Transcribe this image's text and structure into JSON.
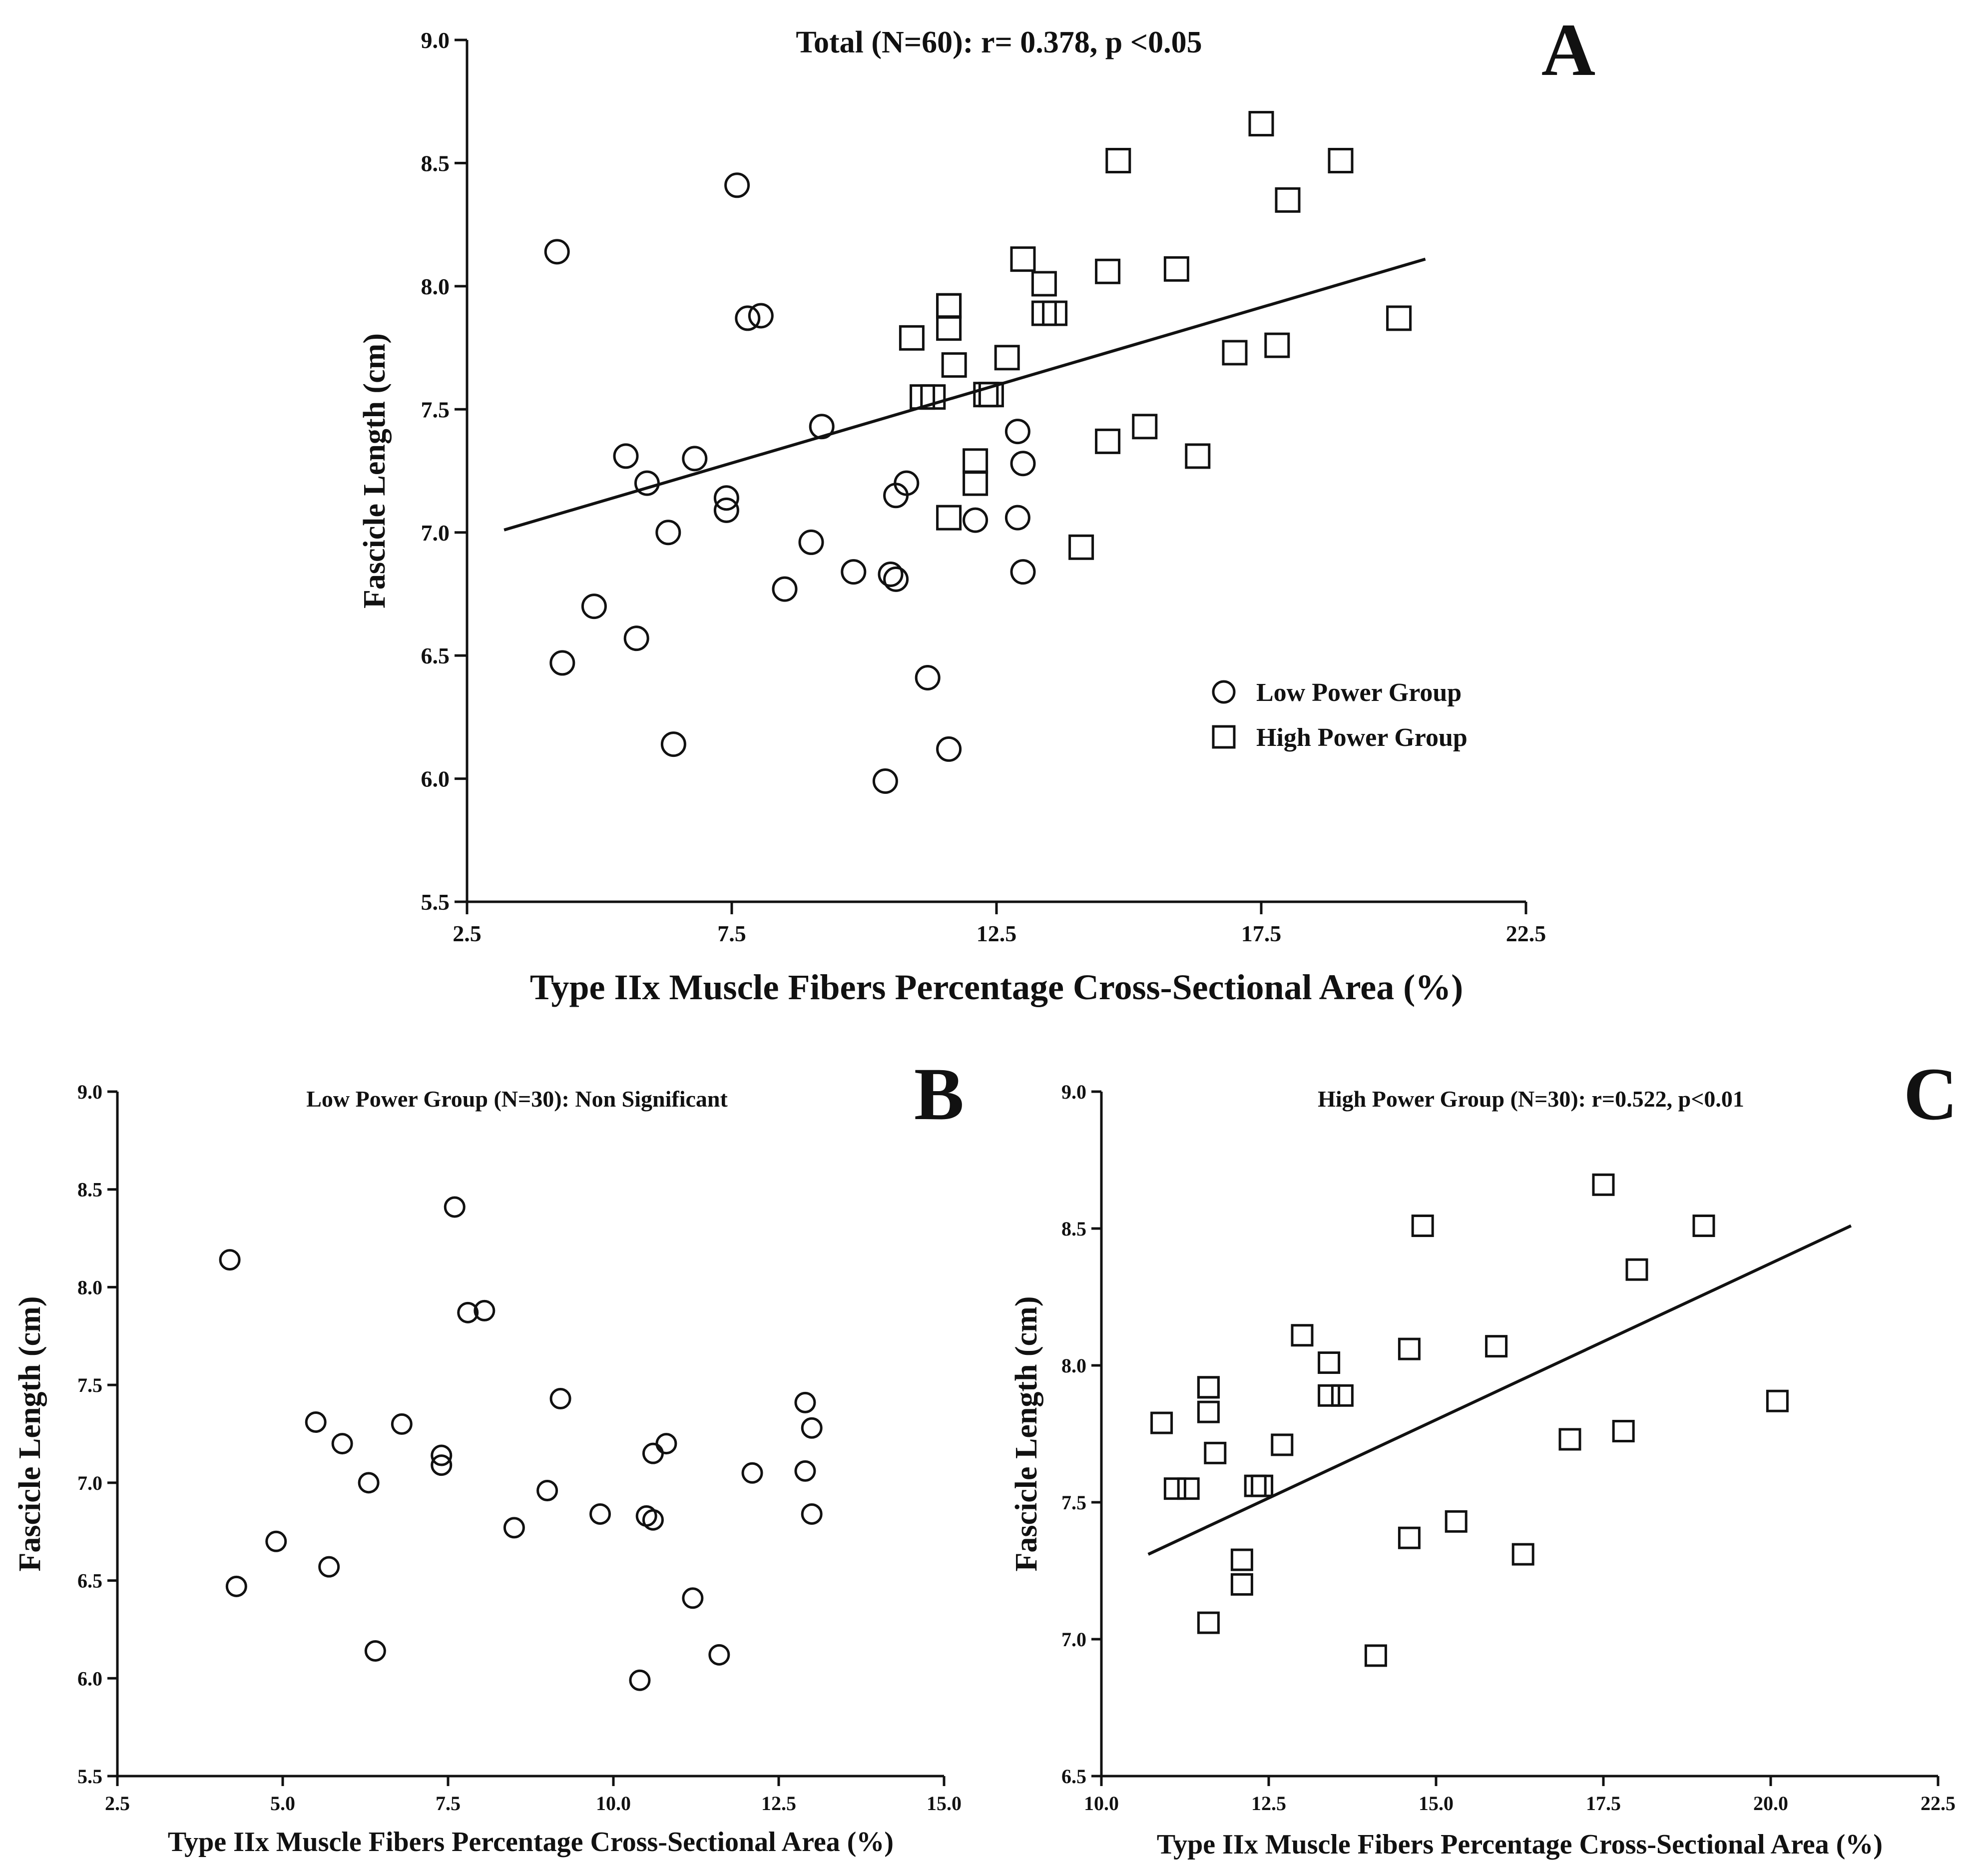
{
  "chart_data": [
    {
      "id": "A",
      "type": "scatter",
      "panel_letter": "A",
      "title": "Total (N=60): r= 0.378, p <0.05",
      "xlabel": "Type IIx Muscle Fibers Percentage Cross-Sectional Area (%)",
      "ylabel": "Fascicle Length (cm)",
      "xlim": [
        2.5,
        22.5
      ],
      "ylim": [
        5.5,
        9.0
      ],
      "xticks": [
        "2.5",
        "7.5",
        "12.5",
        "17.5",
        "22.5"
      ],
      "yticks": [
        "5.5",
        "6.0",
        "6.5",
        "7.0",
        "7.5",
        "8.0",
        "8.5",
        "9.0"
      ],
      "legend": {
        "position": "lower-right",
        "entries": [
          "Low Power Group",
          "High Power Group"
        ]
      },
      "trendline": {
        "x": [
          3.2,
          20.6
        ],
        "y": [
          7.01,
          8.11
        ]
      },
      "series": [
        {
          "name": "Low Power Group",
          "marker": "circle",
          "x": [
            4.2,
            4.3,
            4.9,
            5.5,
            5.7,
            5.9,
            6.3,
            6.4,
            6.8,
            7.4,
            7.4,
            7.6,
            7.8,
            8.05,
            8.5,
            9.0,
            9.2,
            9.8,
            10.5,
            10.6,
            10.6,
            10.8,
            11.2,
            11.6,
            12.1,
            12.9,
            12.9,
            13.0,
            13.0,
            10.4
          ],
          "y": [
            8.14,
            6.47,
            6.7,
            7.31,
            6.57,
            7.2,
            7.0,
            6.14,
            7.3,
            7.14,
            7.09,
            8.41,
            7.87,
            7.88,
            6.77,
            6.96,
            7.43,
            6.84,
            6.83,
            6.81,
            7.15,
            7.2,
            6.41,
            6.12,
            7.05,
            7.41,
            7.06,
            7.28,
            6.84,
            5.99
          ]
        },
        {
          "name": "High Power Group",
          "marker": "square",
          "x": [
            10.9,
            11.1,
            11.3,
            11.6,
            11.6,
            11.6,
            11.7,
            12.1,
            12.1,
            12.3,
            12.4,
            12.7,
            13.0,
            13.4,
            13.4,
            13.6,
            14.1,
            14.6,
            14.6,
            14.8,
            15.3,
            15.9,
            16.3,
            17.0,
            17.5,
            17.8,
            18.0,
            19.0,
            20.1,
            11.6
          ],
          "y": [
            7.79,
            7.55,
            7.55,
            7.92,
            7.83,
            7.06,
            7.68,
            7.29,
            7.2,
            7.56,
            7.56,
            7.71,
            8.11,
            8.01,
            7.89,
            7.89,
            6.94,
            8.06,
            7.37,
            8.51,
            7.43,
            8.07,
            7.31,
            7.73,
            8.66,
            7.76,
            8.35,
            8.51,
            7.87,
            7.92
          ]
        }
      ]
    },
    {
      "id": "B",
      "type": "scatter",
      "panel_letter": "B",
      "title": "Low Power Group (N=30): Non Significant",
      "xlabel": "Type IIx Muscle Fibers Percentage Cross-Sectional Area (%)",
      "ylabel": "Fascicle Length (cm)",
      "xlim": [
        2.5,
        15.0
      ],
      "ylim": [
        5.5,
        9.0
      ],
      "xticks": [
        "2.5",
        "5.0",
        "7.5",
        "10.0",
        "12.5",
        "15.0"
      ],
      "yticks": [
        "5.5",
        "6.0",
        "6.5",
        "7.0",
        "7.5",
        "8.0",
        "8.5",
        "9.0"
      ],
      "series": [
        {
          "name": "Low Power Group",
          "marker": "circle",
          "x": [
            4.2,
            4.3,
            4.9,
            5.5,
            5.7,
            5.9,
            6.3,
            6.4,
            6.8,
            7.4,
            7.4,
            7.6,
            7.8,
            8.05,
            8.5,
            9.0,
            9.2,
            9.8,
            10.5,
            10.6,
            10.6,
            10.8,
            11.2,
            11.6,
            12.1,
            12.9,
            12.9,
            13.0,
            13.0,
            10.4
          ],
          "y": [
            8.14,
            6.47,
            6.7,
            7.31,
            6.57,
            7.2,
            7.0,
            6.14,
            7.3,
            7.14,
            7.09,
            8.41,
            7.87,
            7.88,
            6.77,
            6.96,
            7.43,
            6.84,
            6.83,
            6.81,
            7.15,
            7.2,
            6.41,
            6.12,
            7.05,
            7.41,
            7.06,
            7.28,
            6.84,
            5.99
          ]
        }
      ]
    },
    {
      "id": "C",
      "type": "scatter",
      "panel_letter": "C",
      "title": "High Power Group (N=30): r=0.522, p<0.01",
      "xlabel": "Type IIx Muscle Fibers Percentage Cross-Sectional Area (%)",
      "ylabel": "Fascicle Length (cm)",
      "xlim": [
        10.0,
        22.5
      ],
      "ylim": [
        6.5,
        9.0
      ],
      "xticks": [
        "10.0",
        "12.5",
        "15.0",
        "17.5",
        "20.0",
        "22.5"
      ],
      "yticks": [
        "6.5",
        "7.0",
        "7.5",
        "8.0",
        "8.5",
        "9.0"
      ],
      "trendline": {
        "x": [
          10.7,
          21.2
        ],
        "y": [
          7.31,
          8.51
        ]
      },
      "series": [
        {
          "name": "High Power Group",
          "marker": "square",
          "x": [
            10.9,
            11.1,
            11.3,
            11.6,
            11.6,
            11.6,
            11.7,
            12.1,
            12.1,
            12.3,
            12.4,
            12.7,
            13.0,
            13.4,
            13.4,
            13.6,
            14.1,
            14.6,
            14.6,
            14.8,
            15.3,
            15.9,
            16.3,
            17.0,
            17.5,
            17.8,
            18.0,
            19.0,
            20.1,
            11.6
          ],
          "y": [
            7.79,
            7.55,
            7.55,
            7.92,
            7.83,
            7.06,
            7.68,
            7.29,
            7.2,
            7.56,
            7.56,
            7.71,
            8.11,
            8.01,
            7.89,
            7.89,
            6.94,
            8.06,
            7.37,
            8.51,
            7.43,
            8.07,
            7.31,
            7.73,
            8.66,
            7.76,
            8.35,
            8.51,
            7.87,
            7.92
          ]
        }
      ]
    }
  ]
}
